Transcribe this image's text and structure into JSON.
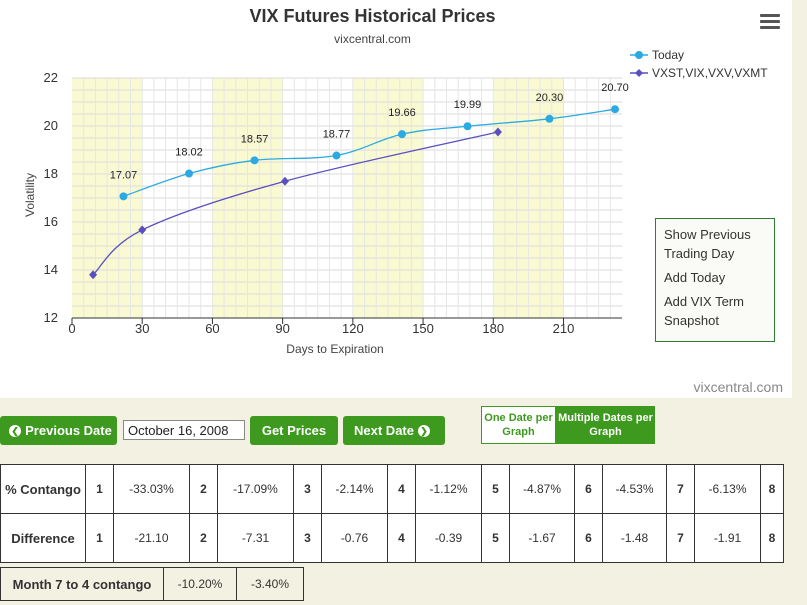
{
  "chart_data": {
    "type": "line",
    "title": "VIX Futures Historical Prices",
    "subtitle": "vixcentral.com",
    "xlabel": "Days to Expiration",
    "ylabel": "Volatility",
    "xlim": [
      0,
      235
    ],
    "ylim": [
      12,
      22
    ],
    "x_ticks": [
      "0",
      "30",
      "60",
      "90",
      "120",
      "150",
      "180",
      "210"
    ],
    "y_ticks": [
      "12",
      "14",
      "16",
      "18",
      "20",
      "22"
    ],
    "grid": true,
    "legend_position": "top-right",
    "shaded_bands": [
      [
        0,
        30
      ],
      [
        60,
        90
      ],
      [
        120,
        150
      ],
      [
        180,
        210
      ]
    ],
    "series": [
      {
        "name": "Today",
        "color": "#2aaae0",
        "x": [
          22,
          50,
          78,
          113,
          141,
          169,
          204,
          232
        ],
        "values": [
          17.07,
          18.02,
          18.57,
          18.77,
          19.66,
          19.99,
          20.3,
          20.7
        ],
        "labels": [
          "17.07",
          "18.02",
          "18.57",
          "18.77",
          "19.66",
          "19.99",
          "20.30",
          "20.70"
        ]
      },
      {
        "name": "VXST,VIX,VXV,VXMT",
        "color": "#5a4fbf",
        "x": [
          9,
          30,
          91,
          182
        ],
        "values": [
          13.8,
          15.67,
          17.7,
          19.75
        ]
      }
    ]
  },
  "header": {
    "title": "VIX Futures Historical Prices",
    "subtitle": "vixcentral.com",
    "menu_icon": "hamburger-menu-icon"
  },
  "legend": {
    "today": "Today",
    "term": "VXST,VIX,VXV,VXMT"
  },
  "side_box": {
    "show_previous": "Show Previous Trading Day",
    "add_today": "Add Today",
    "add_vix_term": "Add VIX Term Snapshot"
  },
  "credit": "vixcentral.com",
  "controls": {
    "previous_date": "Previous Date",
    "date_value": "October 16, 2008",
    "get_prices": "Get Prices",
    "next_date": "Next Date",
    "one_date": "One Date per Graph",
    "multiple_dates": "Multiple Dates per Graph"
  },
  "spread_table": {
    "contango_label": "% Contango",
    "difference_label": "Difference",
    "contango": [
      {
        "idx": "1",
        "value": "-33.03%"
      },
      {
        "idx": "2",
        "value": "-17.09%"
      },
      {
        "idx": "3",
        "value": "-2.14%"
      },
      {
        "idx": "4",
        "value": "-1.12%"
      },
      {
        "idx": "5",
        "value": "-4.87%"
      },
      {
        "idx": "6",
        "value": "-4.53%"
      },
      {
        "idx": "7",
        "value": "-6.13%"
      },
      {
        "idx": "8",
        "value": ""
      }
    ],
    "difference": [
      {
        "idx": "1",
        "value": "-21.10"
      },
      {
        "idx": "2",
        "value": "-7.31"
      },
      {
        "idx": "3",
        "value": "-0.76"
      },
      {
        "idx": "4",
        "value": "-0.39"
      },
      {
        "idx": "5",
        "value": "-1.67"
      },
      {
        "idx": "6",
        "value": "-1.48"
      },
      {
        "idx": "7",
        "value": "-1.91"
      },
      {
        "idx": "8",
        "value": ""
      }
    ]
  },
  "month_table": {
    "label": "Month 7 to 4 contango",
    "value1": "-10.20%",
    "value2": "-3.40%"
  },
  "colors": {
    "accent_green": "#3e9a1f",
    "today_line": "#2aaae0",
    "term_line": "#5a4fbf",
    "band": "#fafad2"
  }
}
